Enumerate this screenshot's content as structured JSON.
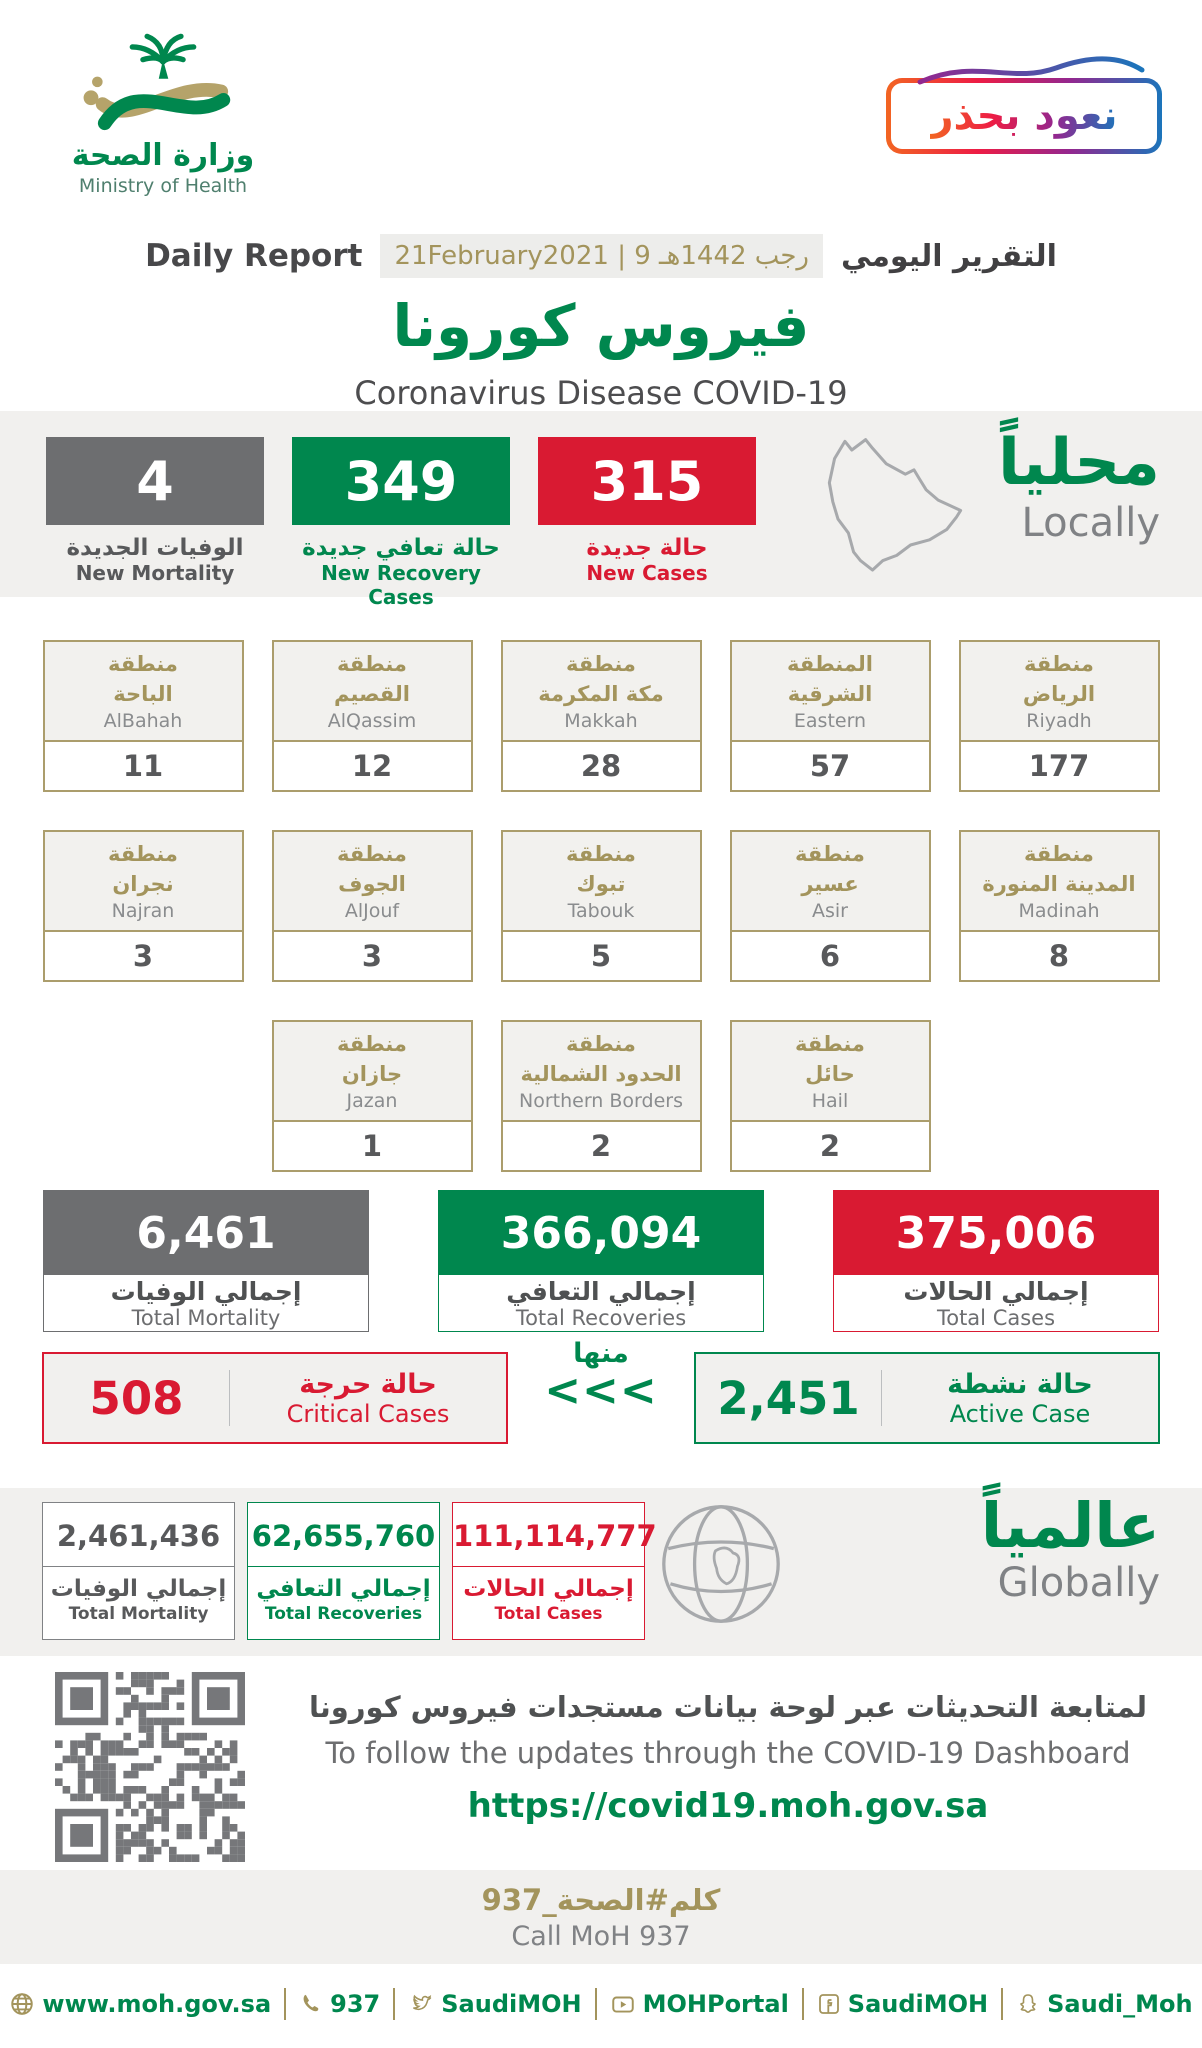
{
  "colors": {
    "green": "#00874e",
    "red": "#d91a32",
    "gray": "#6d6e70",
    "gold": "#a3945c",
    "band": "#f1f0ee",
    "qr": "#76777a"
  },
  "header": {
    "logo": {
      "arabic": "وزارة الصحة",
      "english": "Ministry of Health"
    },
    "badge": {
      "text": "نعود بحذر"
    },
    "report_label_en": "Daily Report",
    "date": "21February2021 | 9 رجب 1442هـ",
    "report_label_ar": "التقرير اليومي",
    "title_ar": "فيروس كورونا",
    "title_en": "Coronavirus Disease COVID-19"
  },
  "locally": {
    "label_ar": "محلياً",
    "label_en": "Locally",
    "stats": [
      {
        "value": "4",
        "label_ar": "الوفيات الجديدة",
        "label_en": "New Mortality"
      },
      {
        "value": "349",
        "label_ar": "حالة تعافي جديدة",
        "label_en": "New Recovery Cases"
      },
      {
        "value": "315",
        "label_ar": "حالة جديدة",
        "label_en": "New Cases"
      }
    ]
  },
  "regions": {
    "row1": [
      {
        "ar": "منطقة\nالباحة",
        "en": "AlBahah",
        "value": "11"
      },
      {
        "ar": "منطقة\nالقصيم",
        "en": "AlQassim",
        "value": "12"
      },
      {
        "ar": "منطقة\nمكة المكرمة",
        "en": "Makkah",
        "value": "28"
      },
      {
        "ar": "المنطقة\nالشرقية",
        "en": "Eastern",
        "value": "57"
      },
      {
        "ar": "منطقة\nالرياض",
        "en": "Riyadh",
        "value": "177"
      }
    ],
    "row2": [
      {
        "ar": "منطقة\nنجران",
        "en": "Najran",
        "value": "3"
      },
      {
        "ar": "منطقة\nالجوف",
        "en": "AlJouf",
        "value": "3"
      },
      {
        "ar": "منطقة\nتبوك",
        "en": "Tabouk",
        "value": "5"
      },
      {
        "ar": "منطقة\nعسير",
        "en": "Asir",
        "value": "6"
      },
      {
        "ar": "منطقة\nالمدينة المنورة",
        "en": "Madinah",
        "value": "8"
      }
    ],
    "row3": [
      {
        "ar": "منطقة\nجازان",
        "en": "Jazan",
        "value": "1"
      },
      {
        "ar": "منطقة\nالحدود الشمالية",
        "en": "Northern Borders",
        "value": "2"
      },
      {
        "ar": "منطقة\nحائل",
        "en": "Hail",
        "value": "2"
      }
    ]
  },
  "totals": [
    {
      "value": "6,461",
      "label_ar": "إجمالي الوفيات",
      "label_en": "Total Mortality"
    },
    {
      "value": "366,094",
      "label_ar": "إجمالي التعافي",
      "label_en": "Total Recoveries"
    },
    {
      "value": "375,006",
      "label_ar": "إجمالي الحالات",
      "label_en": "Total Cases"
    }
  ],
  "breakdown": {
    "critical": {
      "value": "508",
      "label_ar": "حالة حرجة",
      "label_en": "Critical Cases"
    },
    "of_which": "منها",
    "chevrons": "<<<",
    "active": {
      "value": "2,451",
      "label_ar": "حالة نشطة",
      "label_en": "Active Case"
    }
  },
  "globally": {
    "label_ar": "عالمياً",
    "label_en": "Globally",
    "stats": [
      {
        "value": "2,461,436",
        "label_ar": "إجمالي الوفيات",
        "label_en": "Total Mortality"
      },
      {
        "value": "62,655,760",
        "label_ar": "إجمالي التعافي",
        "label_en": "Total Recoveries"
      },
      {
        "value": "111,114,777",
        "label_ar": "إجمالي الحالات",
        "label_en": "Total Cases"
      }
    ]
  },
  "dashboard": {
    "text_ar": "لمتابعة التحديثات عبر لوحة بيانات مستجدات فيروس كورونا",
    "text_en": "To follow the updates through the COVID-19 Dashboard",
    "url": "https://covid19.moh.gov.sa"
  },
  "call": {
    "ar": "كلم#الصحة_937",
    "en": "Call MoH 937"
  },
  "footer": {
    "links": [
      {
        "icon": "globe-icon",
        "text": "www.moh.gov.sa"
      },
      {
        "icon": "phone-icon",
        "text": "937"
      },
      {
        "icon": "twitter-icon",
        "text": "SaudiMOH"
      },
      {
        "icon": "youtube-icon",
        "text": "MOHPortal"
      },
      {
        "icon": "facebook-icon",
        "text": "SaudiMOH"
      },
      {
        "icon": "snapchat-icon",
        "text": "Saudi_Moh"
      }
    ]
  }
}
